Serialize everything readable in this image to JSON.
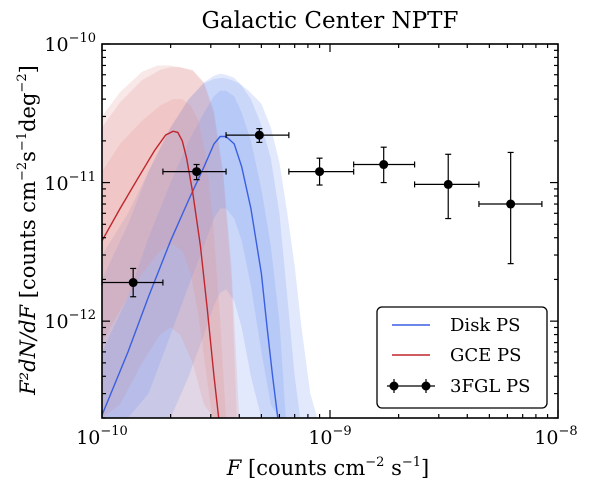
{
  "chart_data": {
    "type": "line",
    "title": "Galactic Center NPTF",
    "xlabel": {
      "symbol": "F",
      "text": " [counts cm",
      "exp1": "−2",
      "mid": " s",
      "exp2": "−1",
      "end": "]"
    },
    "ylabel": {
      "symbol": "F²dN/dF",
      "text": " [counts cm",
      "exp1": "−2",
      "mid": "s",
      "exp2": "−1",
      "mid2": "deg",
      "exp3": "−2",
      "end": "]"
    },
    "x_scale": "log",
    "y_scale": "log",
    "xlim": [
      1e-10,
      1e-08
    ],
    "ylim": [
      2e-13,
      1e-10
    ],
    "x_ticks": [
      {
        "value": 1e-10,
        "base": "10",
        "exp": "−10"
      },
      {
        "value": 1e-09,
        "base": "10",
        "exp": "−9"
      },
      {
        "value": 1e-08,
        "base": "10",
        "exp": "−8"
      }
    ],
    "y_ticks": [
      {
        "value": 1e-12,
        "base": "10",
        "exp": "−12"
      },
      {
        "value": 1e-11,
        "base": "10",
        "exp": "−11"
      },
      {
        "value": 1e-10,
        "base": "10",
        "exp": "−10"
      }
    ],
    "legend_position": "lower right",
    "series": [
      {
        "name": "Disk PS",
        "kind": "median_with_bands",
        "color": "#3a5fe0",
        "band_color": "#6f8ff0",
        "x": [
          1e-10,
          1.3e-10,
          1.6e-10,
          2e-10,
          2.4e-10,
          2.8e-10,
          3.1e-10,
          3.3e-10,
          3.5e-10,
          3.8e-10,
          4.1e-10,
          4.5e-10,
          5e-10,
          5.3e-10,
          5.6e-10,
          5.9e-10
        ],
        "y": [
          2.1e-13,
          6e-13,
          1.5e-12,
          3.8e-12,
          7.5e-12,
          1.3e-11,
          1.9e-11,
          2.15e-11,
          2.15e-11,
          1.9e-11,
          1.3e-11,
          6.5e-12,
          2.2e-12,
          9e-13,
          4e-13,
          2e-13
        ],
        "band_1sigma": {
          "x": [
            1e-10,
            1.3e-10,
            1.6e-10,
            2e-10,
            2.4e-10,
            2.8e-10,
            3.1e-10,
            3.3e-10,
            3.5e-10,
            3.8e-10,
            4.1e-10,
            4.5e-10,
            5e-10,
            5.5e-10,
            6e-10,
            6.4e-10
          ],
          "upper": [
            6e-13,
            1.5e-12,
            4e-12,
            1e-11,
            2e-11,
            3.2e-11,
            4.2e-11,
            4.6e-11,
            4.6e-11,
            4.2e-11,
            3.2e-11,
            2e-11,
            9e-12,
            3.5e-12,
            1e-12,
            2e-13
          ],
          "lower": [
            2e-13,
            2e-13,
            3e-13,
            8e-13,
            1.8e-12,
            3.5e-12,
            5.5e-12,
            6.5e-12,
            6.5e-12,
            5.5e-12,
            3.8e-12,
            1.8e-12,
            6e-13,
            2.5e-13,
            2e-13,
            2e-13
          ]
        },
        "band_2sigma": {
          "x": [
            1e-10,
            1.3e-10,
            1.6e-10,
            2e-10,
            2.4e-10,
            2.8e-10,
            3.1e-10,
            3.3e-10,
            3.5e-10,
            3.8e-10,
            4.1e-10,
            4.5e-10,
            5e-10,
            5.5e-10,
            6e-10,
            6.5e-10,
            7e-10,
            7.4e-10
          ],
          "upper": [
            2e-12,
            5e-12,
            1.2e-11,
            2.5e-11,
            4e-11,
            5.3e-11,
            5.9e-11,
            6.1e-11,
            6e-11,
            5.7e-11,
            5e-11,
            4e-11,
            2.6e-11,
            1.5e-11,
            6e-12,
            1.5e-12,
            4e-13,
            2e-13
          ],
          "lower": [
            2e-13,
            2e-13,
            2e-13,
            2e-13,
            4e-13,
            8e-13,
            1.3e-12,
            1.6e-12,
            1.7e-12,
            1.4e-12,
            9e-13,
            4e-13,
            2e-13,
            2e-13,
            2e-13,
            2e-13,
            2e-13,
            2e-13
          ]
        },
        "band_3sigma": {
          "x": [
            1e-10,
            1.3e-10,
            1.6e-10,
            2e-10,
            2.4e-10,
            2.8e-10,
            3.1e-10,
            3.4e-10,
            3.7e-10,
            4e-10,
            4.4e-10,
            5e-10,
            5.5e-10,
            6e-10,
            6.5e-10,
            7e-10,
            7.5e-10,
            8.2e-10,
            8.8e-10
          ],
          "upper": [
            3e-12,
            6e-12,
            1.2e-11,
            2.5e-11,
            4e-11,
            5.2e-11,
            5.6e-11,
            5.7e-11,
            5.5e-11,
            5.2e-11,
            4.6e-11,
            3.7e-11,
            2.5e-11,
            1.4e-11,
            6e-12,
            2.5e-12,
            9e-13,
            3e-13,
            2e-13
          ],
          "lower": [
            2e-13,
            2e-13,
            2e-13,
            2e-13,
            2e-13,
            2e-13,
            2e-13,
            2e-13,
            2e-13,
            2e-13,
            2e-13,
            2e-13,
            2e-13,
            2e-13,
            2e-13,
            2e-13,
            2e-13,
            2e-13,
            2e-13
          ]
        }
      },
      {
        "name": "GCE PS",
        "kind": "median_with_bands",
        "color": "#c0262d",
        "band_color": "#e08a8a",
        "x": [
          1e-10,
          1.2e-10,
          1.45e-10,
          1.7e-10,
          1.9e-10,
          2.05e-10,
          2.15e-10,
          2.25e-10,
          2.35e-10,
          2.5e-10,
          2.7e-10,
          2.9e-10,
          3.1e-10,
          3.25e-10
        ],
        "y": [
          3.8e-12,
          6.5e-12,
          1.1e-11,
          1.7e-11,
          2.2e-11,
          2.35e-11,
          2.3e-11,
          2e-11,
          1.5e-11,
          8.5e-12,
          3.5e-12,
          1.2e-12,
          4e-13,
          2e-13
        ],
        "band_1sigma": {
          "x": [
            1e-10,
            1.2e-10,
            1.5e-10,
            1.8e-10,
            2.05e-10,
            2.25e-10,
            2.45e-10,
            2.65e-10,
            2.85e-10,
            3.05e-10,
            3.3e-10,
            3.5e-10
          ],
          "upper": [
            1.2e-11,
            1.9e-11,
            2.8e-11,
            3.6e-11,
            4e-11,
            4e-11,
            3.6e-11,
            2.8e-11,
            1.6e-11,
            6e-12,
            1e-12,
            2e-13
          ],
          "lower": [
            7e-13,
            1.2e-12,
            2.2e-12,
            3.2e-12,
            3.6e-12,
            3.2e-12,
            2.2e-12,
            1.1e-12,
            4.5e-13,
            2e-13,
            2e-13,
            2e-13
          ]
        },
        "band_2sigma": {
          "x": [
            1e-10,
            1.2e-10,
            1.5e-10,
            1.8e-10,
            2e-10,
            2.2e-10,
            2.5e-10,
            2.8e-10,
            3.1e-10,
            3.4e-10,
            3.7e-10,
            3.9e-10
          ],
          "upper": [
            2.5e-11,
            3.8e-11,
            5.5e-11,
            6.5e-11,
            6.8e-11,
            6.8e-11,
            6.4e-11,
            5.2e-11,
            3.1e-11,
            1.1e-11,
            2e-12,
            2e-13
          ],
          "lower": [
            2e-13,
            2.5e-13,
            5e-13,
            8e-13,
            9e-13,
            8e-13,
            5e-13,
            2.5e-13,
            2e-13,
            2e-13,
            2e-13,
            2e-13
          ]
        },
        "band_3sigma": {
          "x": [
            1e-10,
            1.2e-10,
            1.5e-10,
            1.75e-10,
            2e-10,
            2.2e-10,
            2.5e-10,
            2.8e-10,
            3.1e-10,
            3.4e-10,
            3.7e-10,
            4e-10
          ],
          "upper": [
            3e-11,
            4.5e-11,
            6.3e-11,
            7e-11,
            7e-11,
            6.8e-11,
            6.5e-11,
            5.3e-11,
            3.3e-11,
            1.2e-11,
            2.5e-12,
            2e-13
          ],
          "lower": [
            2e-13,
            2e-13,
            2e-13,
            2e-13,
            2e-13,
            2e-13,
            2e-13,
            2e-13,
            2e-13,
            2e-13,
            2e-13,
            2e-13
          ]
        }
      },
      {
        "name": "3FGL PS",
        "kind": "errorbar",
        "color": "#000000",
        "points": [
          {
            "x": 1.37e-10,
            "y": 1.9e-12,
            "x_lo": 1e-10,
            "x_hi": 1.85e-10,
            "y_lo": 1.5e-12,
            "y_hi": 2.4e-12
          },
          {
            "x": 2.6e-10,
            "y": 1.2e-11,
            "x_lo": 1.85e-10,
            "x_hi": 3.5e-10,
            "y_lo": 1.05e-11,
            "y_hi": 1.35e-11
          },
          {
            "x": 4.9e-10,
            "y": 2.2e-11,
            "x_lo": 3.5e-10,
            "x_hi": 6.6e-10,
            "y_lo": 1.95e-11,
            "y_hi": 2.45e-11
          },
          {
            "x": 9e-10,
            "y": 1.2e-11,
            "x_lo": 6.6e-10,
            "x_hi": 1.27e-09,
            "y_lo": 9.6e-12,
            "y_hi": 1.5e-11
          },
          {
            "x": 1.72e-09,
            "y": 1.35e-11,
            "x_lo": 1.27e-09,
            "x_hi": 2.35e-09,
            "y_lo": 1e-11,
            "y_hi": 1.8e-11
          },
          {
            "x": 3.3e-09,
            "y": 9.7e-12,
            "x_lo": 2.35e-09,
            "x_hi": 4.5e-09,
            "y_lo": 5.5e-12,
            "y_hi": 1.6e-11
          },
          {
            "x": 6.2e-09,
            "y": 7e-12,
            "x_lo": 4.5e-09,
            "x_hi": 8.5e-09,
            "y_lo": 2.6e-12,
            "y_hi": 1.65e-11
          }
        ]
      }
    ]
  }
}
